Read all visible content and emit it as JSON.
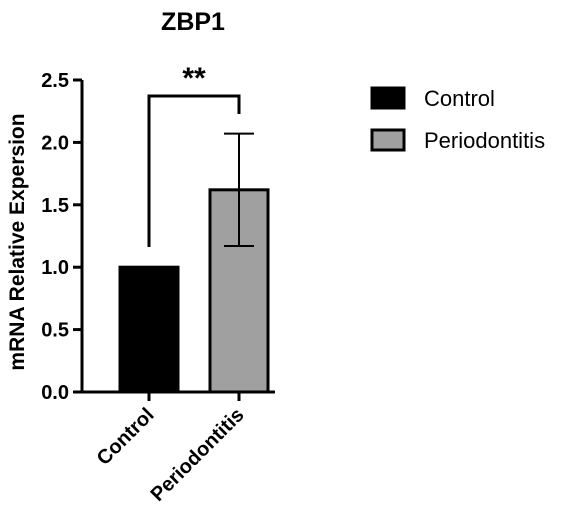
{
  "chart_data": {
    "type": "bar",
    "title": "ZBP1",
    "ylabel": "mRNA Relative Expersion",
    "xlabel": "",
    "categories": [
      "Control",
      "Periodontitis"
    ],
    "values": [
      1.0,
      1.62
    ],
    "error_bars": [
      0.0,
      0.45
    ],
    "colors": [
      "#000000",
      "#a0a0a0"
    ],
    "ylim": [
      0,
      2.5
    ],
    "yticks": [
      "0.0",
      "0.5",
      "1.0",
      "1.5",
      "2.0",
      "2.5"
    ],
    "ytick_values": [
      0.0,
      0.5,
      1.0,
      1.5,
      2.0,
      2.5
    ],
    "significance": "**",
    "legend": {
      "placement": "right",
      "entries": [
        {
          "label": "Control",
          "color": "#000000"
        },
        {
          "label": "Periodontitis",
          "color": "#a0a0a0"
        }
      ]
    },
    "grid": false
  }
}
